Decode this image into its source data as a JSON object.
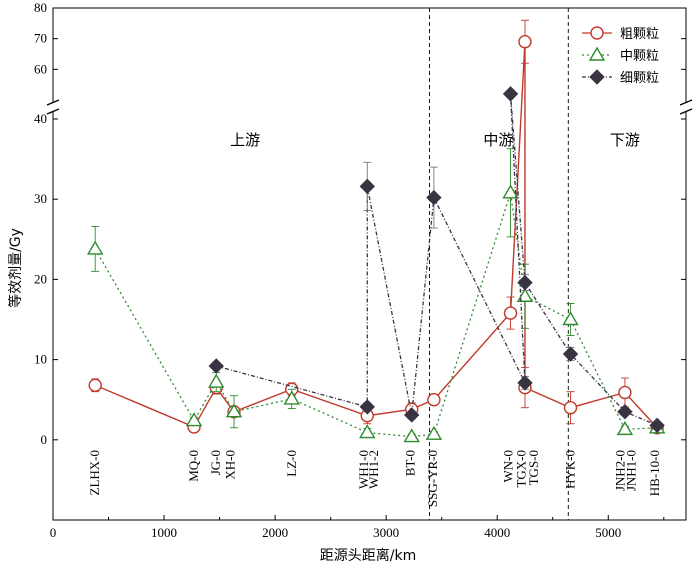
{
  "chart_data": {
    "type": "line",
    "xlabel": "距源头距离/km",
    "ylabel": "等效剂量/Gy",
    "xlim": [
      0,
      5700
    ],
    "ylim_lower": [
      -10,
      40
    ],
    "ylim_upper": [
      50,
      80
    ],
    "y_axis_break": true,
    "x_ticks": [
      0,
      1000,
      2000,
      3000,
      4000,
      5000
    ],
    "y_ticks_lower": [
      0,
      10,
      20,
      30,
      40
    ],
    "y_ticks_upper": [
      60,
      70,
      80
    ],
    "grid": false,
    "legend_position": "top-right",
    "regions": [
      {
        "label": "上游",
        "x": 1730
      },
      {
        "label": "中游",
        "x": 4010
      },
      {
        "label": "下游",
        "x": 5150
      }
    ],
    "dividers_x": [
      3390,
      4640
    ],
    "site_labels": [
      {
        "label": "ZLHX-0",
        "x": 380
      },
      {
        "label": "MQ-0",
        "x": 1270
      },
      {
        "label": "JG-0",
        "x": 1470
      },
      {
        "label": "XH-0",
        "x": 1600
      },
      {
        "label": "LZ-0",
        "x": 2150
      },
      {
        "label": "WH1-0",
        "x": 2800
      },
      {
        "label": "WH1-2",
        "x": 2890
      },
      {
        "label": "BT-0",
        "x": 3220
      },
      {
        "label": "SSG-YR-0",
        "x": 3420
      },
      {
        "label": "WN-0",
        "x": 4100
      },
      {
        "label": "TGX-0",
        "x": 4220
      },
      {
        "label": "TGS-0",
        "x": 4330
      },
      {
        "label": "HYK-0",
        "x": 4660
      },
      {
        "label": "JNH2-0",
        "x": 5110
      },
      {
        "label": "JNH1-0",
        "x": 5210
      },
      {
        "label": "HB-10-0",
        "x": 5420
      }
    ],
    "series": [
      {
        "name": "粗颗粒",
        "color": "#c0392b",
        "marker": "circle",
        "line": "solid",
        "x": [
          380,
          1270,
          1470,
          1630,
          2150,
          2830,
          3230,
          3430,
          4120,
          4250,
          4250,
          4660,
          5150,
          5440
        ],
        "y": [
          6.8,
          1.6,
          6.5,
          3.5,
          6.3,
          3.0,
          3.8,
          5.0,
          15.8,
          69.0,
          6.5,
          4.0,
          5.9,
          1.5
        ],
        "err": [
          0.8,
          0.5,
          0.8,
          0.6,
          0.8,
          1.0,
          0.8,
          0.6,
          2.0,
          7.0,
          2.5,
          2.0,
          1.8,
          0.4
        ]
      },
      {
        "name": "中颗粒",
        "color": "#2e8b2e",
        "marker": "triangle",
        "line": "dotted",
        "x": [
          380,
          1270,
          1470,
          1630,
          2150,
          2830,
          3230,
          3430,
          4120,
          4250,
          4660,
          5150,
          5440
        ],
        "y": [
          23.8,
          2.4,
          7.2,
          3.5,
          5.1,
          0.9,
          0.4,
          0.7,
          30.8,
          17.9,
          15.0,
          1.3,
          1.5
        ],
        "err": [
          2.8,
          0.4,
          1.2,
          2.0,
          1.2,
          0.5,
          0.3,
          0.3,
          5.5,
          4.0,
          2.0,
          0.4,
          0.4
        ]
      },
      {
        "name": "细颗粒",
        "color": "#3a3442",
        "marker": "diamond",
        "line": "dashdot",
        "x": [
          1470,
          2830,
          2830,
          3230,
          3430,
          4250,
          4120,
          4250,
          4660,
          5150,
          5440
        ],
        "y": [
          9.2,
          4.1,
          31.6,
          3.1,
          30.2,
          7.1,
          52.0,
          19.6,
          10.7,
          3.5,
          1.8
        ],
        "err": [
          0,
          0.5,
          3.0,
          0.5,
          3.8,
          0.8,
          0,
          1.0,
          0.8,
          0.4,
          0.3
        ]
      }
    ]
  }
}
